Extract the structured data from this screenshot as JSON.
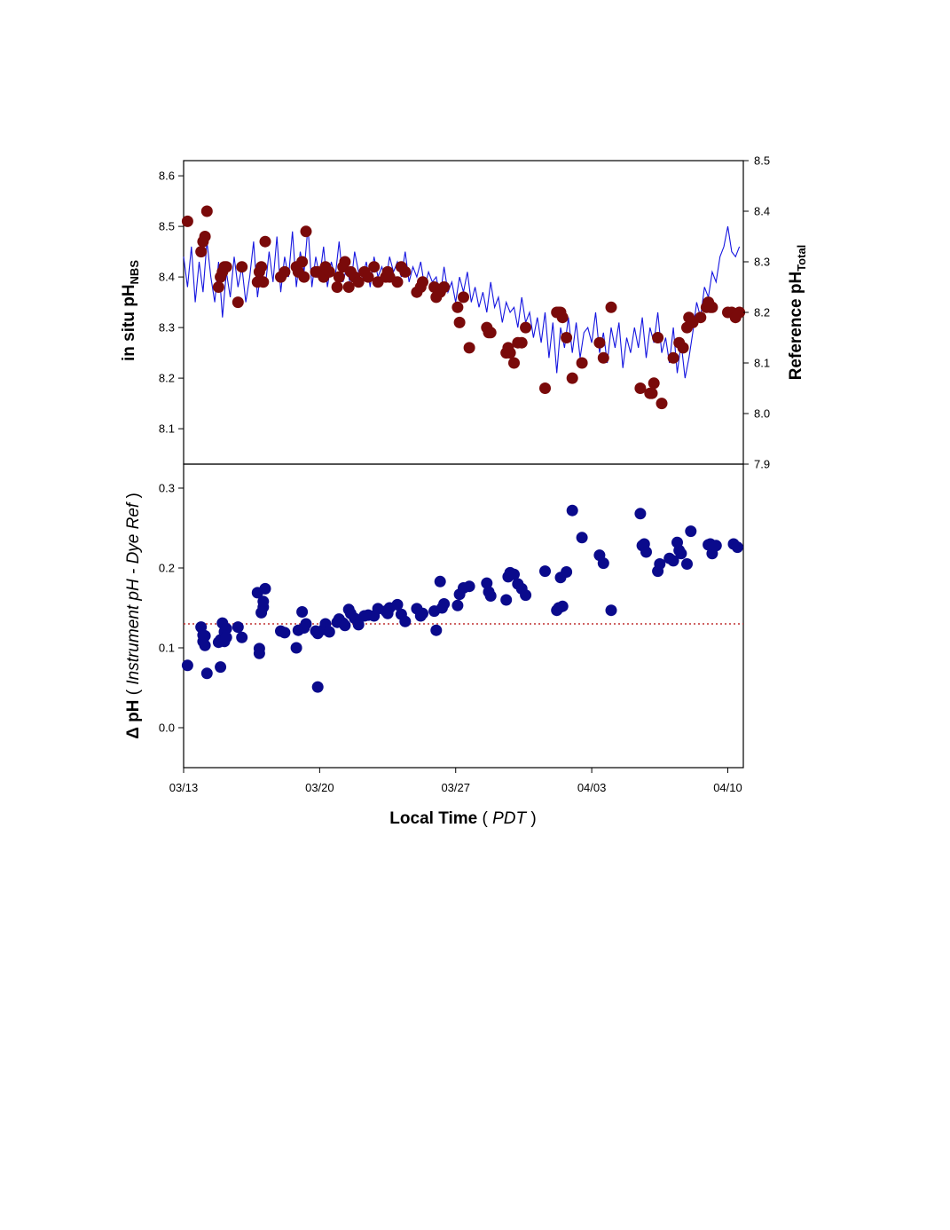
{
  "colors": {
    "line": "#1515e0",
    "reference": "#7a0a0a",
    "delta": "#0a0a8c",
    "mean_line": "#c03030",
    "axis": "#000000"
  },
  "chart_data": [
    {
      "type": "line",
      "panel": "top",
      "xlim": [
        0,
        28.8
      ],
      "x_ticks": [
        0,
        7,
        14,
        21,
        28
      ],
      "x_tick_labels": [
        "03/13",
        "03/20",
        "03/27",
        "04/03",
        "04/10"
      ],
      "xlabel": "Local Time ( PDT )",
      "ylabel_left": "in situ pH<sub>NBS</sub>",
      "ylabel_left_main": "in situ pH",
      "ylabel_left_sub": "NBS",
      "ylim_left": [
        8.03,
        8.63
      ],
      "yticks_left": [
        8.1,
        8.2,
        8.3,
        8.4,
        8.5,
        8.6
      ],
      "ylabel_right_main": "Reference pH",
      "ylabel_right_sub": "Total",
      "ylim_right": [
        7.9,
        8.5
      ],
      "yticks_right": [
        7.9,
        8.0,
        8.1,
        8.2,
        8.3,
        8.4,
        8.5
      ],
      "series": [
        {
          "kind": "line",
          "axis": "left",
          "x": [
            0.0,
            0.2,
            0.4,
            0.6,
            0.8,
            1.0,
            1.2,
            1.4,
            1.6,
            1.8,
            2.0,
            2.2,
            2.4,
            2.6,
            2.8,
            3.0,
            3.2,
            3.4,
            3.6,
            3.8,
            4.0,
            4.2,
            4.4,
            4.6,
            4.8,
            5.0,
            5.2,
            5.4,
            5.6,
            5.8,
            6.0,
            6.2,
            6.4,
            6.6,
            6.8,
            7.0,
            7.2,
            7.4,
            7.6,
            7.8,
            8.0,
            8.2,
            8.4,
            8.6,
            8.8,
            9.0,
            9.2,
            9.4,
            9.6,
            9.8,
            10.0,
            10.2,
            10.4,
            10.6,
            10.8,
            11.0,
            11.2,
            11.4,
            11.6,
            11.8,
            12.0,
            12.2,
            12.4,
            12.6,
            12.8,
            13.0,
            13.2,
            13.4,
            13.6,
            13.8,
            14.0,
            14.2,
            14.4,
            14.6,
            14.8,
            15.0,
            15.2,
            15.4,
            15.6,
            15.8,
            16.0,
            16.2,
            16.4,
            16.6,
            16.8,
            17.0,
            17.2,
            17.4,
            17.6,
            17.8,
            18.0,
            18.2,
            18.4,
            18.6,
            18.8,
            19.0,
            19.2,
            19.4,
            19.6,
            19.8,
            20.0,
            20.2,
            20.4,
            20.6,
            20.8,
            21.0,
            21.2,
            21.4,
            21.6,
            21.8,
            22.0,
            22.2,
            22.4,
            22.6,
            22.8,
            23.0,
            23.2,
            23.4,
            23.6,
            23.8,
            24.0,
            24.2,
            24.4,
            24.6,
            24.8,
            25.0,
            25.2,
            25.4,
            25.6,
            25.8,
            26.0,
            26.2,
            26.4,
            26.6,
            26.8,
            27.0,
            27.2,
            27.4,
            27.6,
            27.8,
            28.0,
            28.2,
            28.4,
            28.6
          ],
          "y": [
            8.44,
            8.38,
            8.46,
            8.35,
            8.43,
            8.37,
            8.47,
            8.4,
            8.35,
            8.43,
            8.32,
            8.41,
            8.36,
            8.44,
            8.38,
            8.42,
            8.35,
            8.4,
            8.47,
            8.36,
            8.42,
            8.38,
            8.45,
            8.39,
            8.48,
            8.37,
            8.44,
            8.4,
            8.49,
            8.38,
            8.45,
            8.41,
            8.5,
            8.38,
            8.44,
            8.4,
            8.46,
            8.38,
            8.43,
            8.4,
            8.47,
            8.39,
            8.42,
            8.38,
            8.45,
            8.41,
            8.4,
            8.43,
            8.38,
            8.44,
            8.4,
            8.42,
            8.39,
            8.44,
            8.41,
            8.43,
            8.4,
            8.45,
            8.39,
            8.42,
            8.4,
            8.43,
            8.38,
            8.41,
            8.39,
            8.4,
            8.36,
            8.42,
            8.37,
            8.39,
            8.35,
            8.4,
            8.37,
            8.41,
            8.35,
            8.38,
            8.34,
            8.37,
            8.33,
            8.39,
            8.34,
            8.36,
            8.31,
            8.35,
            8.33,
            8.34,
            8.3,
            8.36,
            8.31,
            8.33,
            8.28,
            8.32,
            8.27,
            8.33,
            8.24,
            8.31,
            8.21,
            8.3,
            8.26,
            8.32,
            8.25,
            8.31,
            8.24,
            8.29,
            8.3,
            8.27,
            8.33,
            8.25,
            8.29,
            8.23,
            8.3,
            8.26,
            8.31,
            8.22,
            8.28,
            8.25,
            8.3,
            8.26,
            8.32,
            8.24,
            8.3,
            8.27,
            8.33,
            8.25,
            8.28,
            8.23,
            8.3,
            8.21,
            8.27,
            8.2,
            8.24,
            8.29,
            8.35,
            8.32,
            8.38,
            8.36,
            8.41,
            8.39,
            8.44,
            8.46,
            8.5,
            8.45,
            8.44,
            8.46
          ]
        },
        {
          "kind": "scatter",
          "axis": "right",
          "x": [
            0.2,
            0.9,
            1.0,
            1.1,
            1.2,
            1.8,
            1.9,
            2.0,
            2.1,
            2.2,
            2.8,
            3.0,
            3.8,
            3.9,
            4.0,
            4.1,
            4.2,
            5.0,
            5.2,
            5.8,
            5.9,
            6.1,
            6.2,
            6.3,
            6.8,
            6.9,
            7.2,
            7.3,
            7.5,
            7.9,
            8.0,
            8.2,
            8.3,
            8.5,
            8.6,
            8.8,
            9.0,
            9.3,
            9.5,
            9.8,
            10.0,
            10.4,
            10.5,
            10.6,
            11.0,
            11.2,
            11.4,
            12.0,
            12.2,
            12.3,
            12.9,
            13.0,
            13.2,
            13.4,
            14.1,
            14.2,
            14.4,
            14.7,
            15.6,
            15.7,
            15.8,
            16.6,
            16.7,
            16.8,
            17.0,
            17.2,
            17.4,
            17.6,
            18.6,
            19.2,
            19.3,
            19.4,
            19.5,
            19.7,
            20.0,
            20.5,
            21.4,
            21.6,
            22.0,
            23.5,
            24.0,
            24.1,
            24.2,
            24.4,
            24.6,
            25.2,
            25.5,
            25.7,
            25.9,
            26.0,
            26.2,
            26.6,
            26.9,
            27.0,
            27.1,
            27.2,
            28.0,
            28.2,
            28.4,
            28.6
          ],
          "y": [
            8.38,
            8.32,
            8.34,
            8.35,
            8.4,
            8.25,
            8.27,
            8.28,
            8.29,
            8.29,
            8.22,
            8.29,
            8.26,
            8.28,
            8.29,
            8.26,
            8.34,
            8.27,
            8.28,
            8.29,
            8.28,
            8.3,
            8.27,
            8.36,
            8.28,
            8.28,
            8.27,
            8.29,
            8.28,
            8.25,
            8.27,
            8.29,
            8.3,
            8.25,
            8.28,
            8.27,
            8.26,
            8.28,
            8.27,
            8.29,
            8.26,
            8.27,
            8.28,
            8.27,
            8.26,
            8.29,
            8.28,
            8.24,
            8.25,
            8.26,
            8.25,
            8.23,
            8.24,
            8.25,
            8.21,
            8.18,
            8.23,
            8.13,
            8.17,
            8.16,
            8.16,
            8.12,
            8.13,
            8.12,
            8.1,
            8.14,
            8.14,
            8.17,
            8.05,
            8.2,
            8.2,
            8.2,
            8.19,
            8.15,
            8.07,
            8.1,
            8.14,
            8.11,
            8.21,
            8.05,
            8.04,
            8.04,
            8.06,
            8.15,
            8.02,
            8.11,
            8.14,
            8.13,
            8.17,
            8.19,
            8.18,
            8.19,
            8.21,
            8.22,
            8.21,
            8.21,
            8.2,
            8.2,
            8.19,
            8.2
          ]
        }
      ]
    },
    {
      "type": "scatter",
      "panel": "bottom",
      "xlim": [
        0,
        28.8
      ],
      "ylabel_main": "Δ pH",
      "ylabel_paren_open": "( ",
      "ylabel_italic": "Instrument pH - Dye Ref",
      "ylabel_paren_close": " )",
      "ylim": [
        -0.05,
        0.33
      ],
      "yticks": [
        0.0,
        0.1,
        0.2,
        0.3
      ],
      "reference_line_y": 0.13,
      "x": [
        0.2,
        0.9,
        1.0,
        1.0,
        1.1,
        1.2,
        1.1,
        1.8,
        1.9,
        1.9,
        2.0,
        2.1,
        2.1,
        2.2,
        2.2,
        2.8,
        3.0,
        3.8,
        3.9,
        3.9,
        4.0,
        4.1,
        4.1,
        4.2,
        5.0,
        5.2,
        5.8,
        5.9,
        6.1,
        6.2,
        6.3,
        6.8,
        6.9,
        6.9,
        7.2,
        7.3,
        7.5,
        7.9,
        8.0,
        8.2,
        8.3,
        8.5,
        8.6,
        8.8,
        9.0,
        9.3,
        9.5,
        9.8,
        10.0,
        10.4,
        10.5,
        10.6,
        11.0,
        11.2,
        11.4,
        12.0,
        12.2,
        12.3,
        12.9,
        13.0,
        13.2,
        13.4,
        13.3,
        14.1,
        14.2,
        14.4,
        14.7,
        15.6,
        15.7,
        15.8,
        16.6,
        16.7,
        16.8,
        17.0,
        17.2,
        17.4,
        17.6,
        18.6,
        19.2,
        19.3,
        19.4,
        19.5,
        19.7,
        20.0,
        20.5,
        21.4,
        21.6,
        22.0,
        23.5,
        23.6,
        23.7,
        23.8,
        24.4,
        24.5,
        25.0,
        25.2,
        25.4,
        25.5,
        25.6,
        25.9,
        26.1,
        27.0,
        27.1,
        27.2,
        27.4,
        28.3,
        28.5
      ],
      "y": [
        0.078,
        0.126,
        0.116,
        0.108,
        0.103,
        0.068,
        0.115,
        0.107,
        0.076,
        0.11,
        0.131,
        0.12,
        0.108,
        0.124,
        0.113,
        0.126,
        0.113,
        0.169,
        0.099,
        0.093,
        0.144,
        0.151,
        0.158,
        0.174,
        0.121,
        0.119,
        0.1,
        0.122,
        0.145,
        0.125,
        0.13,
        0.121,
        0.051,
        0.118,
        0.123,
        0.13,
        0.12,
        0.132,
        0.136,
        0.131,
        0.128,
        0.148,
        0.143,
        0.137,
        0.129,
        0.14,
        0.141,
        0.14,
        0.149,
        0.146,
        0.143,
        0.15,
        0.154,
        0.142,
        0.133,
        0.149,
        0.14,
        0.143,
        0.146,
        0.122,
        0.183,
        0.155,
        0.15,
        0.153,
        0.167,
        0.175,
        0.177,
        0.181,
        0.17,
        0.165,
        0.16,
        0.189,
        0.194,
        0.192,
        0.18,
        0.174,
        0.166,
        0.196,
        0.147,
        0.15,
        0.188,
        0.152,
        0.195,
        0.272,
        0.238,
        0.216,
        0.206,
        0.147,
        0.268,
        0.228,
        0.23,
        0.22,
        0.196,
        0.205,
        0.212,
        0.209,
        0.232,
        0.222,
        0.218,
        0.205,
        0.246,
        0.229,
        0.23,
        0.218,
        0.228,
        0.23,
        0.226
      ]
    }
  ]
}
